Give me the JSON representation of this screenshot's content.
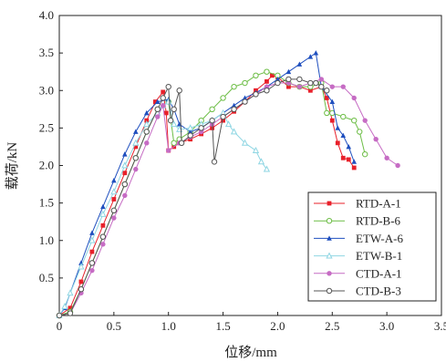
{
  "chart_data": {
    "type": "line",
    "title": "",
    "xlabel": "位移/mm",
    "ylabel": "载荷/kN",
    "xlim": [
      0,
      3.5
    ],
    "ylim": [
      0,
      4.0
    ],
    "xticks": [
      "0",
      "0.5",
      "1.0",
      "1.5",
      "2.0",
      "2.5",
      "3.0",
      "3.5"
    ],
    "yticks": [
      "0.5",
      "1.0",
      "1.5",
      "2.0",
      "2.5",
      "3.0",
      "3.5",
      "4.0"
    ],
    "grid": false,
    "legend_position": "bottom-right",
    "series": [
      {
        "name": "RTD-A-1",
        "color": "#e8202a",
        "marker": "square",
        "points": [
          [
            0,
            0
          ],
          [
            0.1,
            0.1
          ],
          [
            0.2,
            0.45
          ],
          [
            0.3,
            0.85
          ],
          [
            0.4,
            1.2
          ],
          [
            0.5,
            1.55
          ],
          [
            0.6,
            1.9
          ],
          [
            0.7,
            2.25
          ],
          [
            0.8,
            2.6
          ],
          [
            0.88,
            2.85
          ],
          [
            0.95,
            2.98
          ],
          [
            0.98,
            2.7
          ],
          [
            1.0,
            2.2
          ],
          [
            1.05,
            2.25
          ],
          [
            1.1,
            2.3
          ],
          [
            1.2,
            2.35
          ],
          [
            1.3,
            2.42
          ],
          [
            1.4,
            2.5
          ],
          [
            1.5,
            2.6
          ],
          [
            1.6,
            2.72
          ],
          [
            1.7,
            2.85
          ],
          [
            1.8,
            3.0
          ],
          [
            1.9,
            3.12
          ],
          [
            1.95,
            3.2
          ],
          [
            2.0,
            3.18
          ],
          [
            2.1,
            3.05
          ],
          [
            2.2,
            3.05
          ],
          [
            2.3,
            3.0
          ],
          [
            2.4,
            3.05
          ],
          [
            2.45,
            2.9
          ],
          [
            2.5,
            2.6
          ],
          [
            2.55,
            2.3
          ],
          [
            2.6,
            2.1
          ],
          [
            2.65,
            2.08
          ],
          [
            2.7,
            1.97
          ]
        ]
      },
      {
        "name": "RTD-B-6",
        "color": "#6cbd45",
        "marker": "circle",
        "points": [
          [
            0,
            0
          ],
          [
            0.1,
            0.05
          ],
          [
            0.2,
            0.35
          ],
          [
            0.3,
            0.7
          ],
          [
            0.4,
            1.05
          ],
          [
            0.5,
            1.4
          ],
          [
            0.6,
            1.75
          ],
          [
            0.7,
            2.1
          ],
          [
            0.8,
            2.45
          ],
          [
            0.9,
            2.75
          ],
          [
            1.0,
            2.85
          ],
          [
            1.05,
            2.3
          ],
          [
            1.1,
            2.35
          ],
          [
            1.2,
            2.45
          ],
          [
            1.3,
            2.6
          ],
          [
            1.4,
            2.75
          ],
          [
            1.5,
            2.9
          ],
          [
            1.6,
            3.05
          ],
          [
            1.7,
            3.1
          ],
          [
            1.8,
            3.2
          ],
          [
            1.9,
            3.25
          ],
          [
            2.0,
            3.2
          ],
          [
            2.1,
            3.1
          ],
          [
            2.2,
            3.05
          ],
          [
            2.3,
            3.05
          ],
          [
            2.4,
            3.1
          ],
          [
            2.45,
            2.7
          ],
          [
            2.5,
            2.7
          ],
          [
            2.6,
            2.65
          ],
          [
            2.7,
            2.6
          ],
          [
            2.75,
            2.45
          ],
          [
            2.8,
            2.15
          ]
        ]
      },
      {
        "name": "ETW-A-6",
        "color": "#1f4fbf",
        "marker": "triangle",
        "points": [
          [
            0,
            0
          ],
          [
            0.05,
            0.1
          ],
          [
            0.1,
            0.3
          ],
          [
            0.2,
            0.7
          ],
          [
            0.3,
            1.1
          ],
          [
            0.4,
            1.45
          ],
          [
            0.5,
            1.8
          ],
          [
            0.6,
            2.15
          ],
          [
            0.7,
            2.45
          ],
          [
            0.8,
            2.7
          ],
          [
            0.9,
            2.85
          ],
          [
            1.0,
            2.88
          ],
          [
            1.05,
            2.75
          ],
          [
            1.1,
            2.55
          ],
          [
            1.2,
            2.45
          ],
          [
            1.3,
            2.5
          ],
          [
            1.4,
            2.6
          ],
          [
            1.5,
            2.7
          ],
          [
            1.6,
            2.8
          ],
          [
            1.7,
            2.9
          ],
          [
            1.8,
            2.97
          ],
          [
            1.9,
            3.05
          ],
          [
            2.0,
            3.15
          ],
          [
            2.1,
            3.25
          ],
          [
            2.2,
            3.35
          ],
          [
            2.3,
            3.45
          ],
          [
            2.35,
            3.5
          ],
          [
            2.4,
            3.05
          ],
          [
            2.5,
            2.85
          ],
          [
            2.55,
            2.5
          ],
          [
            2.6,
            2.4
          ],
          [
            2.65,
            2.25
          ],
          [
            2.7,
            2.05
          ]
        ]
      },
      {
        "name": "ETW-B-1",
        "color": "#8fd6e3",
        "marker": "triangle-open",
        "points": [
          [
            0,
            0
          ],
          [
            0.05,
            0.12
          ],
          [
            0.1,
            0.3
          ],
          [
            0.2,
            0.65
          ],
          [
            0.3,
            1.0
          ],
          [
            0.4,
            1.35
          ],
          [
            0.5,
            1.65
          ],
          [
            0.6,
            2.0
          ],
          [
            0.7,
            2.3
          ],
          [
            0.8,
            2.55
          ],
          [
            0.9,
            2.7
          ],
          [
            0.95,
            2.8
          ],
          [
            1.0,
            2.85
          ],
          [
            1.05,
            2.55
          ],
          [
            1.1,
            2.48
          ],
          [
            1.2,
            2.5
          ],
          [
            1.3,
            2.55
          ],
          [
            1.4,
            2.6
          ],
          [
            1.5,
            2.7
          ],
          [
            1.55,
            2.55
          ],
          [
            1.6,
            2.45
          ],
          [
            1.7,
            2.3
          ],
          [
            1.8,
            2.2
          ],
          [
            1.85,
            2.05
          ],
          [
            1.9,
            1.95
          ]
        ]
      },
      {
        "name": "CTD-A-1",
        "color": "#c66cc4",
        "marker": "circle-filled",
        "points": [
          [
            0,
            0
          ],
          [
            0.1,
            0.03
          ],
          [
            0.2,
            0.3
          ],
          [
            0.3,
            0.6
          ],
          [
            0.4,
            0.95
          ],
          [
            0.5,
            1.3
          ],
          [
            0.6,
            1.6
          ],
          [
            0.7,
            1.95
          ],
          [
            0.8,
            2.3
          ],
          [
            0.9,
            2.65
          ],
          [
            0.95,
            2.8
          ],
          [
            1.0,
            2.2
          ],
          [
            1.1,
            2.3
          ],
          [
            1.2,
            2.38
          ],
          [
            1.3,
            2.45
          ],
          [
            1.4,
            2.55
          ],
          [
            1.5,
            2.65
          ],
          [
            1.6,
            2.75
          ],
          [
            1.7,
            2.85
          ],
          [
            1.8,
            2.95
          ],
          [
            1.9,
            3.05
          ],
          [
            2.0,
            3.1
          ],
          [
            2.1,
            3.1
          ],
          [
            2.2,
            3.05
          ],
          [
            2.3,
            3.1
          ],
          [
            2.4,
            3.15
          ],
          [
            2.5,
            3.05
          ],
          [
            2.6,
            3.05
          ],
          [
            2.7,
            2.9
          ],
          [
            2.8,
            2.6
          ],
          [
            2.9,
            2.35
          ],
          [
            3.0,
            2.1
          ],
          [
            3.1,
            2.0
          ]
        ]
      },
      {
        "name": "CTD-B-3",
        "color": "#555555",
        "marker": "circle-open",
        "points": [
          [
            0,
            0
          ],
          [
            0.1,
            0.03
          ],
          [
            0.2,
            0.35
          ],
          [
            0.3,
            0.7
          ],
          [
            0.4,
            1.05
          ],
          [
            0.5,
            1.4
          ],
          [
            0.6,
            1.75
          ],
          [
            0.7,
            2.1
          ],
          [
            0.8,
            2.45
          ],
          [
            0.9,
            2.75
          ],
          [
            0.95,
            2.9
          ],
          [
            1.0,
            3.05
          ],
          [
            1.02,
            2.6
          ],
          [
            1.05,
            2.75
          ],
          [
            1.1,
            3.0
          ],
          [
            1.12,
            2.3
          ],
          [
            1.2,
            2.4
          ],
          [
            1.3,
            2.5
          ],
          [
            1.4,
            2.6
          ],
          [
            1.42,
            2.05
          ],
          [
            1.5,
            2.65
          ],
          [
            1.6,
            2.75
          ],
          [
            1.7,
            2.85
          ],
          [
            1.8,
            2.95
          ],
          [
            1.9,
            3.0
          ],
          [
            2.0,
            3.1
          ],
          [
            2.1,
            3.15
          ],
          [
            2.2,
            3.15
          ],
          [
            2.3,
            3.1
          ],
          [
            2.35,
            3.1
          ],
          [
            2.4,
            3.05
          ],
          [
            2.45,
            3.0
          ]
        ]
      }
    ]
  }
}
